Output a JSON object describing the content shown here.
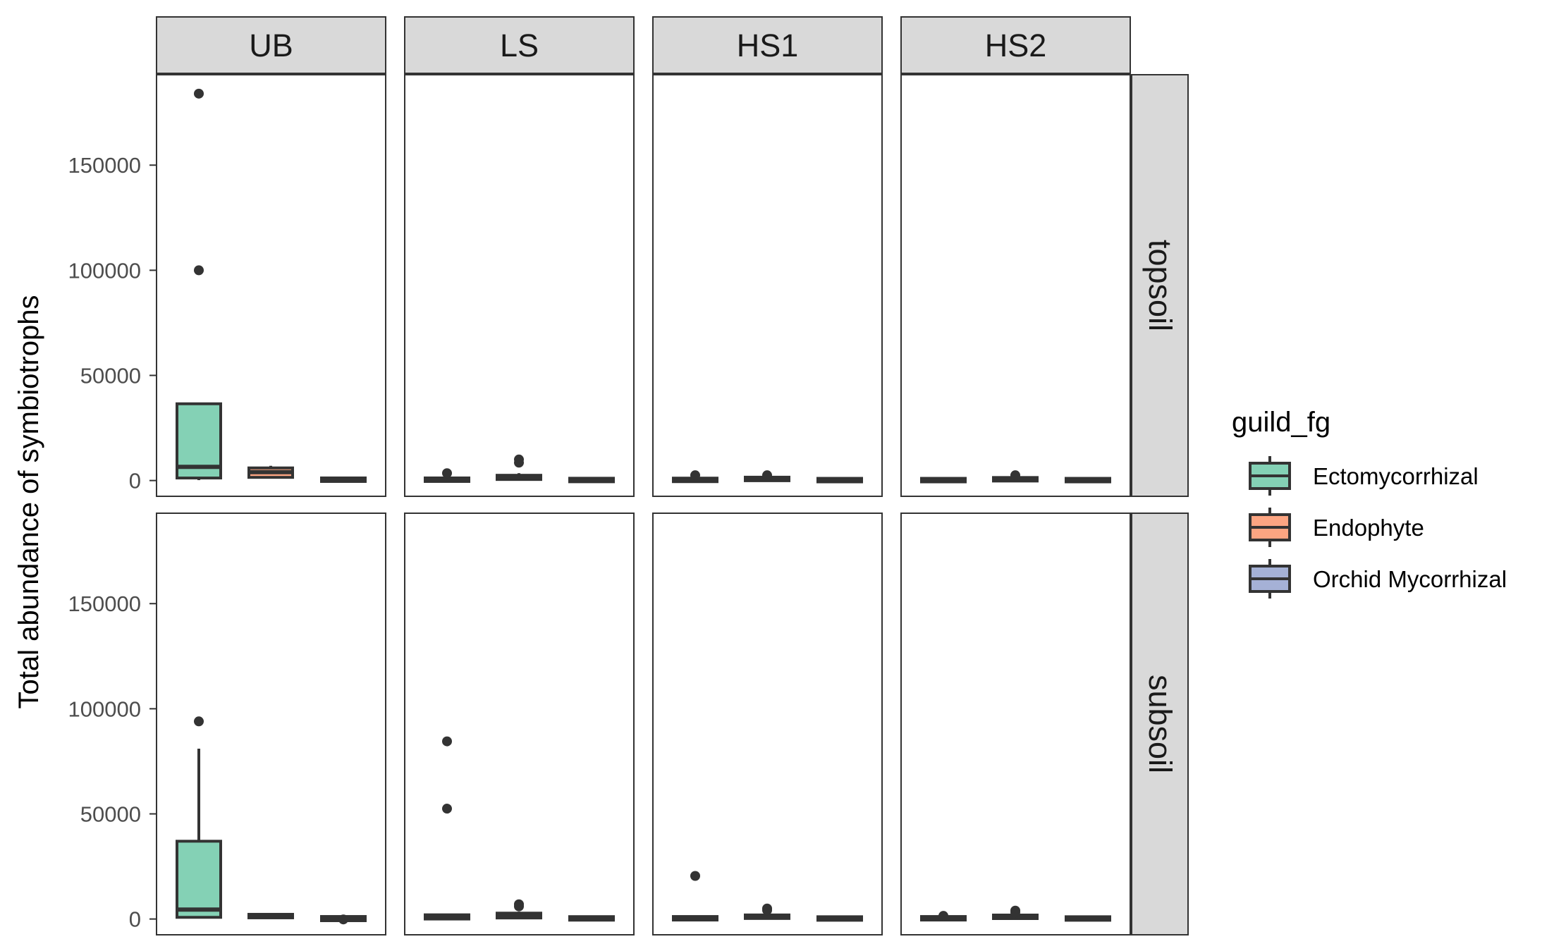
{
  "chart_data": {
    "type": "box",
    "facet_columns": [
      "UB",
      "LS",
      "HS1",
      "HS2"
    ],
    "facet_rows": [
      "topsoil",
      "subsoil"
    ],
    "ylabel": "Total abundance of symbiotrophs",
    "xlabel": "",
    "ylim": [
      -7500,
      193000
    ],
    "yticks": [
      0,
      50000,
      100000,
      150000
    ],
    "ytick_labels": [
      "0",
      "50000",
      "100000",
      "150000"
    ],
    "legend": {
      "title": "guild_fg",
      "position": "right",
      "entries": [
        "Ectomycorrhizal",
        "Endophyte",
        "Orchid Mycorrhizal"
      ]
    },
    "colors": {
      "Ectomycorrhizal": "#84D1B5",
      "Endophyte": "#FCA582",
      "Orchid Mycorrhizal": "#A5B1D6",
      "strip_fill": "#D9D9D9",
      "box_line": "#333333"
    },
    "grid": false,
    "panels": [
      {
        "row": "topsoil",
        "col": "UB",
        "boxes": [
          {
            "group": "Ectomycorrhizal",
            "min": 200,
            "q1": 1200,
            "median": 6500,
            "q3": 36500,
            "max": 37000,
            "outliers": [
              184000,
              100000
            ]
          },
          {
            "group": "Endophyte",
            "min": 1000,
            "q1": 1500,
            "median": 4000,
            "q3": 6000,
            "max": 7000,
            "outliers": []
          },
          {
            "group": "Orchid Mycorrhizal",
            "min": 0,
            "q1": 0,
            "median": 0,
            "q3": 800,
            "max": 1000,
            "outliers": []
          }
        ]
      },
      {
        "row": "topsoil",
        "col": "LS",
        "boxes": [
          {
            "group": "Ectomycorrhizal",
            "min": 0,
            "q1": 0,
            "median": 300,
            "q3": 800,
            "max": 1500,
            "outliers": [
              3500
            ]
          },
          {
            "group": "Endophyte",
            "min": 0,
            "q1": 500,
            "median": 1500,
            "q3": 2500,
            "max": 3500,
            "outliers": [
              10000,
              8500
            ]
          },
          {
            "group": "Orchid Mycorrhizal",
            "min": 0,
            "q1": 0,
            "median": 0,
            "q3": 500,
            "max": 800,
            "outliers": []
          }
        ]
      },
      {
        "row": "topsoil",
        "col": "HS1",
        "boxes": [
          {
            "group": "Ectomycorrhizal",
            "min": 0,
            "q1": 0,
            "median": 300,
            "q3": 600,
            "max": 1000,
            "outliers": [
              2500
            ]
          },
          {
            "group": "Endophyte",
            "min": 0,
            "q1": 300,
            "median": 800,
            "q3": 1200,
            "max": 1800,
            "outliers": [
              2500
            ]
          },
          {
            "group": "Orchid Mycorrhizal",
            "min": 0,
            "q1": 0,
            "median": 0,
            "q3": 400,
            "max": 600,
            "outliers": []
          }
        ]
      },
      {
        "row": "topsoil",
        "col": "HS2",
        "boxes": [
          {
            "group": "Ectomycorrhizal",
            "min": 0,
            "q1": 0,
            "median": 100,
            "q3": 400,
            "max": 600,
            "outliers": []
          },
          {
            "group": "Endophyte",
            "min": 0,
            "q1": 200,
            "median": 600,
            "q3": 1000,
            "max": 1500,
            "outliers": [
              2500
            ]
          },
          {
            "group": "Orchid Mycorrhizal",
            "min": 0,
            "q1": 0,
            "median": 0,
            "q3": 400,
            "max": 600,
            "outliers": []
          }
        ]
      },
      {
        "row": "subsoil",
        "col": "UB",
        "boxes": [
          {
            "group": "Ectomycorrhizal",
            "min": 300,
            "q1": 800,
            "median": 4500,
            "q3": 37000,
            "max": 81000,
            "outliers": [
              94000
            ]
          },
          {
            "group": "Endophyte",
            "min": 300,
            "q1": 600,
            "median": 1500,
            "q3": 2200,
            "max": 2800,
            "outliers": []
          },
          {
            "group": "Orchid Mycorrhizal",
            "min": -900,
            "q1": -800,
            "median": -300,
            "q3": 1200,
            "max": 1500,
            "outliers": [
              -200
            ]
          }
        ]
      },
      {
        "row": "subsoil",
        "col": "LS",
        "boxes": [
          {
            "group": "Ectomycorrhizal",
            "min": 0,
            "q1": 0,
            "median": 500,
            "q3": 2000,
            "max": 2500,
            "outliers": [
              84500,
              52500
            ]
          },
          {
            "group": "Endophyte",
            "min": 0,
            "q1": 500,
            "median": 1500,
            "q3": 2800,
            "max": 3500,
            "outliers": [
              7000,
              6000
            ]
          },
          {
            "group": "Orchid Mycorrhizal",
            "min": 0,
            "q1": 0,
            "median": 0,
            "q3": 600,
            "max": 800,
            "outliers": []
          }
        ]
      },
      {
        "row": "subsoil",
        "col": "HS1",
        "boxes": [
          {
            "group": "Ectomycorrhizal",
            "min": 0,
            "q1": 0,
            "median": 300,
            "q3": 700,
            "max": 1200,
            "outliers": [
              20500
            ]
          },
          {
            "group": "Endophyte",
            "min": 0,
            "q1": 400,
            "median": 1000,
            "q3": 1800,
            "max": 2500,
            "outliers": [
              5000,
              4200
            ]
          },
          {
            "group": "Orchid Mycorrhizal",
            "min": 0,
            "q1": 0,
            "median": 0,
            "q3": 500,
            "max": 800,
            "outliers": []
          }
        ]
      },
      {
        "row": "subsoil",
        "col": "HS2",
        "boxes": [
          {
            "group": "Ectomycorrhizal",
            "min": 0,
            "q1": 0,
            "median": 300,
            "q3": 700,
            "max": 1000,
            "outliers": [
              1500
            ]
          },
          {
            "group": "Endophyte",
            "min": 0,
            "q1": 300,
            "median": 1000,
            "q3": 1800,
            "max": 2500,
            "outliers": [
              4000,
              3200
            ]
          },
          {
            "group": "Orchid Mycorrhizal",
            "min": 0,
            "q1": 0,
            "median": 0,
            "q3": 500,
            "max": 800,
            "outliers": []
          }
        ]
      }
    ]
  }
}
